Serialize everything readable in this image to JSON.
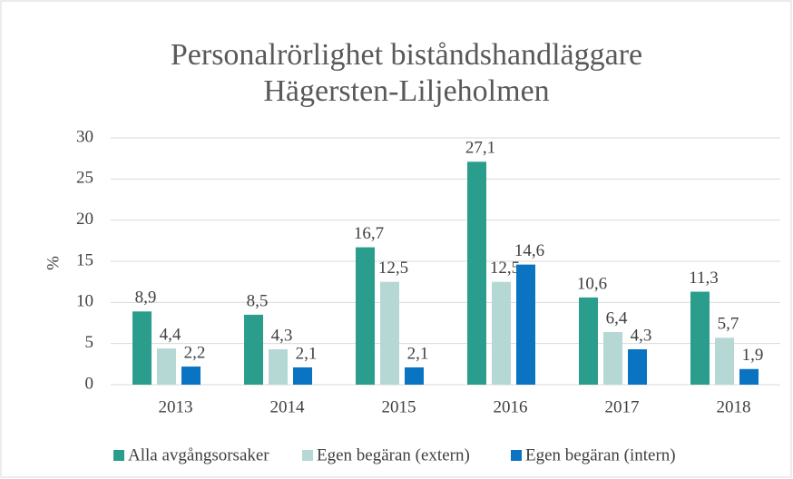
{
  "chart_data": {
    "type": "bar",
    "title": [
      "Personalrörlighet biståndshandläggare",
      "Hägersten-Liljeholmen"
    ],
    "ylabel": "%",
    "categories": [
      "2013",
      "2014",
      "2015",
      "2016",
      "2017",
      "2018"
    ],
    "series": [
      {
        "name": "Alla avgångsorsaker",
        "color": "#2a9d8c",
        "values": [
          8.9,
          8.5,
          16.7,
          27.1,
          10.6,
          11.3
        ],
        "value_labels": [
          "8,9",
          "8,5",
          "16,7",
          "27,1",
          "10,6",
          "11,3"
        ]
      },
      {
        "name": "Egen begäran (extern)",
        "color": "#b5d8d5",
        "values": [
          4.4,
          4.3,
          12.5,
          12.5,
          6.4,
          5.7
        ],
        "value_labels": [
          "4,4",
          "4,3",
          "12,5",
          "12,5",
          "6,4",
          "5,7"
        ]
      },
      {
        "name": "Egen begäran (intern)",
        "color": "#0b74c2",
        "values": [
          2.2,
          2.1,
          2.1,
          14.6,
          4.3,
          1.9
        ],
        "value_labels": [
          "2,2",
          "2,1",
          "2,1",
          "14,6",
          "4,3",
          "1,9"
        ]
      }
    ],
    "ylim": [
      0,
      30
    ],
    "yticks": [
      0,
      5,
      10,
      15,
      20,
      25,
      30
    ],
    "grid": true,
    "legend": "bottom"
  }
}
